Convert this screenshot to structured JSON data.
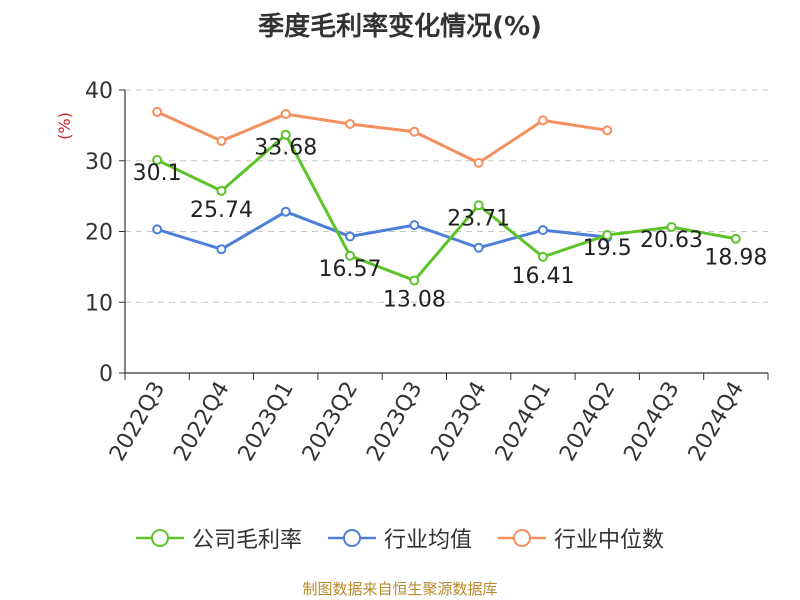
{
  "title": "季度毛利率变化情况(%)",
  "source": "制图数据来自恒生聚源数据库",
  "colors": {
    "company": "#5cc32a",
    "industry_avg": "#4d7fd9",
    "industry_median": "#f58f5e"
  },
  "chart_data": {
    "type": "line",
    "title": "季度毛利率变化情况(%)",
    "ylabel": "(%)",
    "ylim": [
      0,
      40
    ],
    "yticks": [
      0,
      10,
      20,
      30,
      40
    ],
    "grid": true,
    "legend_position": "bottom",
    "categories": [
      "2022Q3",
      "2022Q4",
      "2023Q1",
      "2023Q2",
      "2023Q3",
      "2023Q4",
      "2024Q1",
      "2024Q2",
      "2024Q3",
      "2024Q4"
    ],
    "series": [
      {
        "name": "公司毛利率",
        "color": "#5cc32a",
        "values": [
          30.1,
          25.74,
          33.68,
          16.57,
          13.08,
          23.71,
          16.41,
          19.5,
          20.63,
          18.98
        ],
        "labels": [
          "30.1",
          "25.74",
          "33.68",
          "16.57",
          "13.08",
          "23.71",
          "16.41",
          "19.5",
          "20.63",
          "18.98"
        ]
      },
      {
        "name": "行业均值",
        "color": "#4d7fd9",
        "values": [
          20.3,
          17.5,
          22.8,
          19.3,
          20.9,
          17.7,
          20.2,
          19.2,
          null,
          null
        ]
      },
      {
        "name": "行业中位数",
        "color": "#f58f5e",
        "values": [
          36.9,
          32.8,
          36.6,
          35.2,
          34.1,
          29.7,
          35.7,
          34.3,
          null,
          null
        ]
      }
    ]
  }
}
